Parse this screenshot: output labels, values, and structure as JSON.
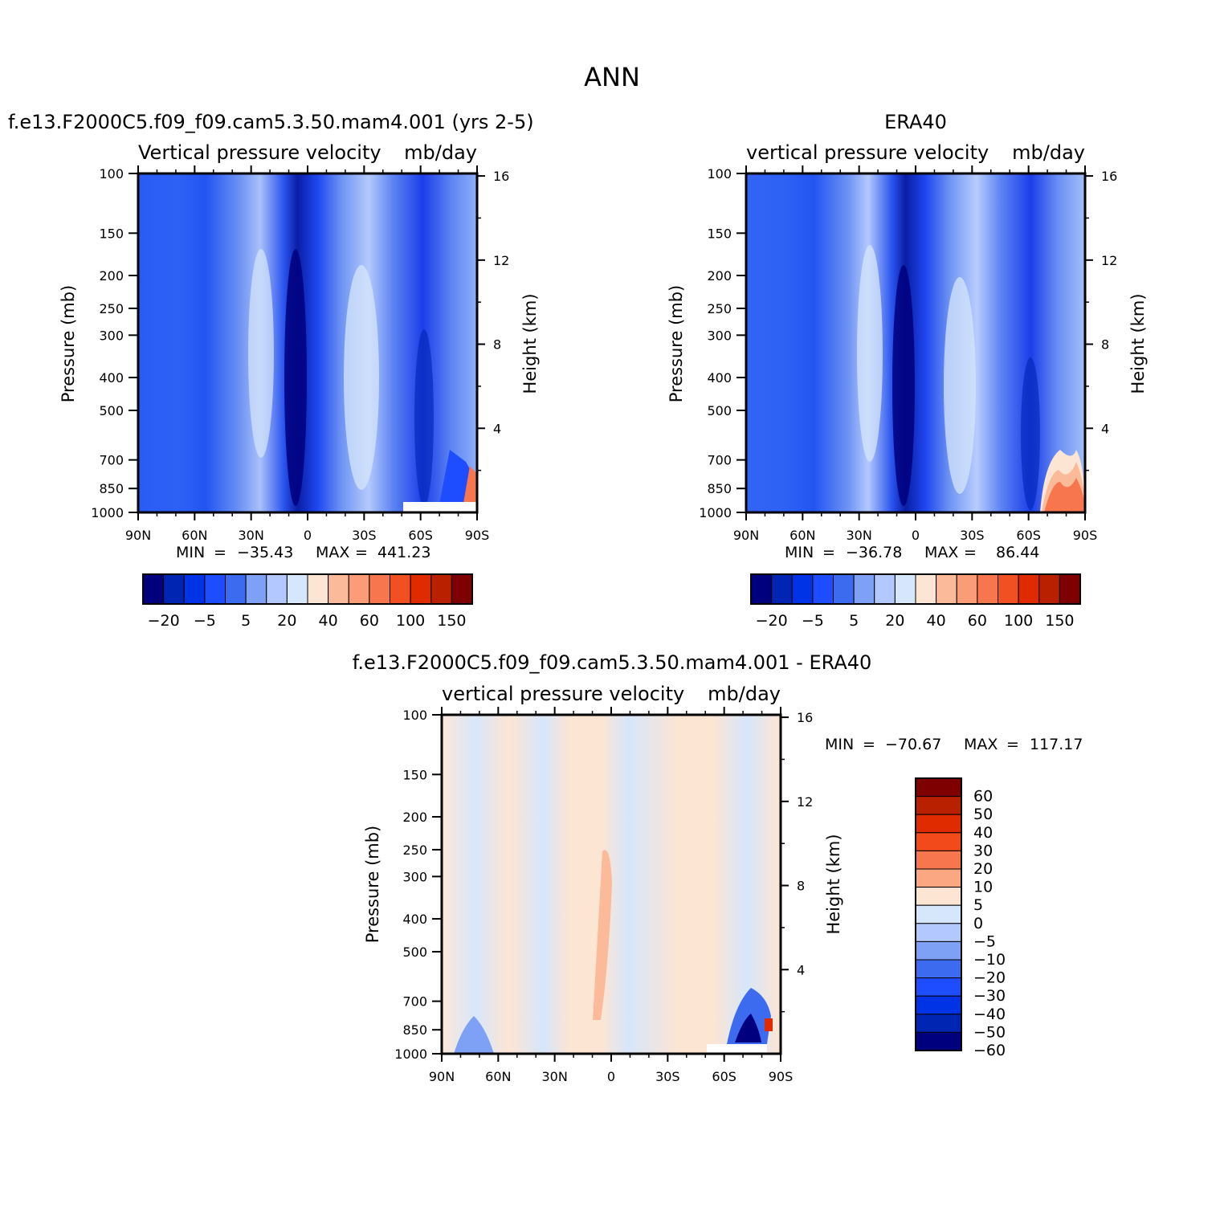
{
  "figure": {
    "title": "ANN"
  },
  "chart_data": [
    {
      "type": "heatmap",
      "title": "f.e13.F2000C5.f09_f09.cam5.3.50.mam4.001 (yrs 2-5)",
      "subtitle_left": "Vertical pressure velocity",
      "units": "mb/day",
      "ylabel": "Pressure (mb)",
      "y2label": "Height (km)",
      "xticks": [
        "90N",
        "60N",
        "30N",
        "0",
        "30S",
        "60S",
        "90S"
      ],
      "yticks": [
        "100",
        "150",
        "200",
        "250",
        "300",
        "400",
        "500",
        "700",
        "850",
        "1000"
      ],
      "y2ticks": [
        "16",
        "12",
        "8",
        "4"
      ],
      "ylim": [
        1000,
        100
      ],
      "xlim": [
        "90N",
        "90S"
      ],
      "stats": {
        "min_label": "MIN",
        "min": "-35.43",
        "max_label": "MAX",
        "max": "441.23"
      },
      "colorbar_labels": [
        "-20",
        "-5",
        "5",
        "20",
        "40",
        "60",
        "100",
        "150"
      ]
    },
    {
      "type": "heatmap",
      "title": "ERA40",
      "subtitle_left": "vertical pressure velocity",
      "units": "mb/day",
      "ylabel": "Pressure (mb)",
      "y2label": "Height (km)",
      "xticks": [
        "90N",
        "60N",
        "30N",
        "0",
        "30S",
        "60S",
        "90S"
      ],
      "yticks": [
        "100",
        "150",
        "200",
        "250",
        "300",
        "400",
        "500",
        "700",
        "850",
        "1000"
      ],
      "y2ticks": [
        "16",
        "12",
        "8",
        "4"
      ],
      "ylim": [
        1000,
        100
      ],
      "xlim": [
        "90N",
        "90S"
      ],
      "stats": {
        "min_label": "MIN",
        "min": "-36.78",
        "max_label": "MAX",
        "max": "86.44"
      },
      "colorbar_labels": [
        "-20",
        "-5",
        "5",
        "20",
        "40",
        "60",
        "100",
        "150"
      ]
    },
    {
      "type": "heatmap",
      "title": "f.e13.F2000C5.f09_f09.cam5.3.50.mam4.001 - ERA40",
      "subtitle_left": "vertical pressure velocity",
      "units": "mb/day",
      "ylabel": "Pressure (mb)",
      "y2label": "Height (km)",
      "xticks": [
        "90N",
        "60N",
        "30N",
        "0",
        "30S",
        "60S",
        "90S"
      ],
      "yticks": [
        "100",
        "150",
        "200",
        "250",
        "300",
        "400",
        "500",
        "700",
        "850",
        "1000"
      ],
      "y2ticks": [
        "16",
        "12",
        "8",
        "4"
      ],
      "ylim": [
        1000,
        100
      ],
      "xlim": [
        "90N",
        "90S"
      ],
      "stats": {
        "min_label": "MIN",
        "min": "-70.67",
        "max_label": "MAX",
        "max": "117.17"
      },
      "colorbar_labels": [
        "60",
        "50",
        "40",
        "30",
        "20",
        "10",
        "5",
        "0",
        "-5",
        "-10",
        "-20",
        "-30",
        "-40",
        "-50",
        "-60"
      ]
    }
  ],
  "colors": {
    "seq": [
      "#00007f",
      "#0025b3",
      "#0033e6",
      "#1e4cff",
      "#3d6bf0",
      "#7ea0f5",
      "#b3c8ff",
      "#d6e6fb",
      "#fde5d3",
      "#fbbb9a",
      "#f99c77",
      "#f8764e",
      "#f05022",
      "#e02a00",
      "#b82000",
      "#7f0000"
    ],
    "diff": [
      "#7f0000",
      "#b82000",
      "#e02a00",
      "#f24a1a",
      "#f8764e",
      "#fba882",
      "#fde5d3",
      "#d6e6fb",
      "#b3c8ff",
      "#7ea0f5",
      "#3d6bf0",
      "#1e4cff",
      "#0033e6",
      "#0025b3",
      "#00007f"
    ]
  }
}
